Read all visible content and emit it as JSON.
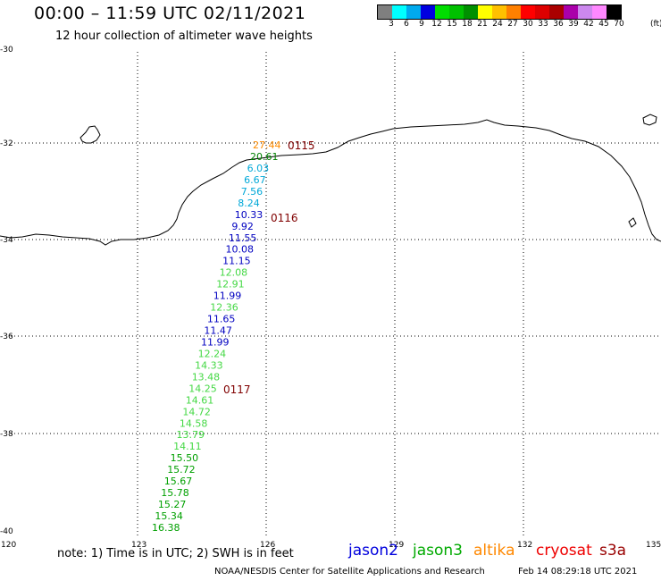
{
  "header": {
    "title": "00:00 – 11:59 UTC 02/11/2021",
    "subtitle": "12 hour collection of altimeter wave heights"
  },
  "colorbar": {
    "unit": "(ft)",
    "swatches": [
      "#7f7f7f",
      "#00ffff",
      "#00aaee",
      "#0000e0",
      "#00dd00",
      "#00c000",
      "#009000",
      "#ffff00",
      "#ffc000",
      "#ff8000",
      "#ff0000",
      "#dd0000",
      "#aa0000",
      "#aa00aa",
      "#cc88ee",
      "#ff88ff",
      "#000000"
    ],
    "labels": [
      "3",
      "6",
      "9",
      "12",
      "15",
      "18",
      "21",
      "24",
      "27",
      "30",
      "33",
      "36",
      "39",
      "42",
      "45",
      "70"
    ]
  },
  "axes": {
    "lat_labels": [
      "-30",
      "-32",
      "-34",
      "-36",
      "-38",
      "-40"
    ],
    "lon_labels": [
      "120",
      "123",
      "126",
      "129",
      "132",
      "135"
    ]
  },
  "map": {
    "measurements": [
      {
        "value": "27.44",
        "color": "#ff8c00"
      },
      {
        "value": "20.61",
        "color": "#008000"
      },
      {
        "value": "6.03",
        "color": "#00a8d8"
      },
      {
        "value": "6.67",
        "color": "#00a8d8"
      },
      {
        "value": "7.56",
        "color": "#00a8d8"
      },
      {
        "value": "8.24",
        "color": "#00a8d8"
      },
      {
        "value": "10.33",
        "color": "#0000c0"
      },
      {
        "value": "9.92",
        "color": "#0000c0"
      },
      {
        "value": "11.55",
        "color": "#0000c0"
      },
      {
        "value": "10.08",
        "color": "#0000c0"
      },
      {
        "value": "11.15",
        "color": "#0000c0"
      },
      {
        "value": "12.08",
        "color": "#44d844"
      },
      {
        "value": "12.91",
        "color": "#44d844"
      },
      {
        "value": "11.99",
        "color": "#0000c0"
      },
      {
        "value": "12.36",
        "color": "#44d844"
      },
      {
        "value": "11.65",
        "color": "#0000c0"
      },
      {
        "value": "11.47",
        "color": "#0000c0"
      },
      {
        "value": "11.99",
        "color": "#0000c0"
      },
      {
        "value": "12.24",
        "color": "#44d844"
      },
      {
        "value": "14.33",
        "color": "#44d844"
      },
      {
        "value": "13.48",
        "color": "#44d844"
      },
      {
        "value": "14.25",
        "color": "#44d844"
      },
      {
        "value": "14.61",
        "color": "#44d844"
      },
      {
        "value": "14.72",
        "color": "#44d844"
      },
      {
        "value": "14.58",
        "color": "#44d844"
      },
      {
        "value": "13.79",
        "color": "#44d844"
      },
      {
        "value": "14.11",
        "color": "#44d844"
      },
      {
        "value": "15.50",
        "color": "#00a000"
      },
      {
        "value": "15.72",
        "color": "#00a000"
      },
      {
        "value": "15.67",
        "color": "#00a000"
      },
      {
        "value": "15.78",
        "color": "#00a000"
      },
      {
        "value": "15.27",
        "color": "#00a000"
      },
      {
        "value": "15.34",
        "color": "#00a000"
      },
      {
        "value": "16.38",
        "color": "#00a000"
      }
    ],
    "time_labels": [
      "0115",
      "0116",
      "0117"
    ]
  },
  "footer": {
    "note": "note:  1) Time is in UTC;  2) SWH is in feet",
    "legend": [
      {
        "label": "jason2",
        "color": "#0000dd"
      },
      {
        "label": "jason3",
        "color": "#00aa00"
      },
      {
        "label": "altika",
        "color": "#ff8800"
      },
      {
        "label": "cryosat",
        "color": "#ee0000"
      },
      {
        "label": "s3a",
        "color": "#990000"
      }
    ],
    "credit": "NOAA/NESDIS Center for Satellite Applications and Research",
    "timestamp": "Feb 14 08:29:18 UTC 2021"
  }
}
